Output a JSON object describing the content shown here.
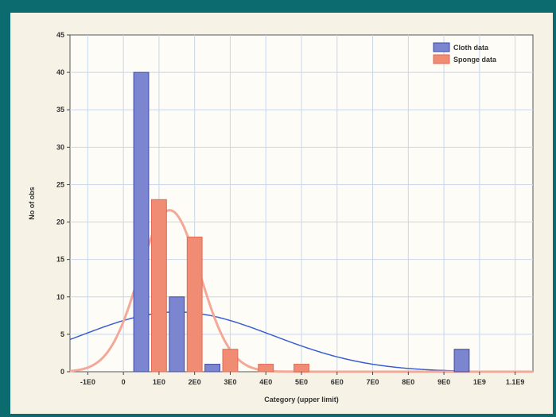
{
  "chart_data": {
    "type": "bar",
    "xlabel": "Category (upper limit)",
    "ylabel": "No of obs",
    "ylim": [
      0,
      45
    ],
    "yticks": [
      "0",
      "5",
      "10",
      "15",
      "20",
      "25",
      "30",
      "35",
      "40",
      "45"
    ],
    "xlim": [
      -150,
      1150
    ],
    "xticks": [
      {
        "value": -100,
        "label": "-1E0"
      },
      {
        "value": 0,
        "label": "0"
      },
      {
        "value": 100,
        "label": "1E0"
      },
      {
        "value": 200,
        "label": "2E0"
      },
      {
        "value": 300,
        "label": "3E0"
      },
      {
        "value": 400,
        "label": "4E0"
      },
      {
        "value": 500,
        "label": "5E0"
      },
      {
        "value": 600,
        "label": "6E0"
      },
      {
        "value": 700,
        "label": "7E0"
      },
      {
        "value": 800,
        "label": "8E0"
      },
      {
        "value": 900,
        "label": "9E0"
      },
      {
        "value": 1000,
        "label": "1E9"
      },
      {
        "value": 1100,
        "label": "1.1E9"
      }
    ],
    "grid": true,
    "legend_position": "top-right",
    "series": [
      {
        "name": "Cloth data",
        "color": "#7b85d0",
        "edge": "#3d4aa8",
        "bars": [
          {
            "x": 50,
            "value": 40
          },
          {
            "x": 150,
            "value": 10
          },
          {
            "x": 250,
            "value": 1
          },
          {
            "x": 950,
            "value": 3
          }
        ],
        "fit": {
          "mean": 150,
          "sd": 270,
          "n": 54,
          "bin": 100,
          "color": "#3a5fd0"
        }
      },
      {
        "name": "Sponge data",
        "color": "#f08c74",
        "edge": "#e06a55",
        "bars": [
          {
            "x": 100,
            "value": 23
          },
          {
            "x": 200,
            "value": 18
          },
          {
            "x": 300,
            "value": 3
          },
          {
            "x": 400,
            "value": 1
          },
          {
            "x": 500,
            "value": 1
          }
        ],
        "fit": {
          "mean": 130,
          "sd": 85,
          "n": 46,
          "bin": 100,
          "color": "#f3a898"
        }
      }
    ]
  }
}
